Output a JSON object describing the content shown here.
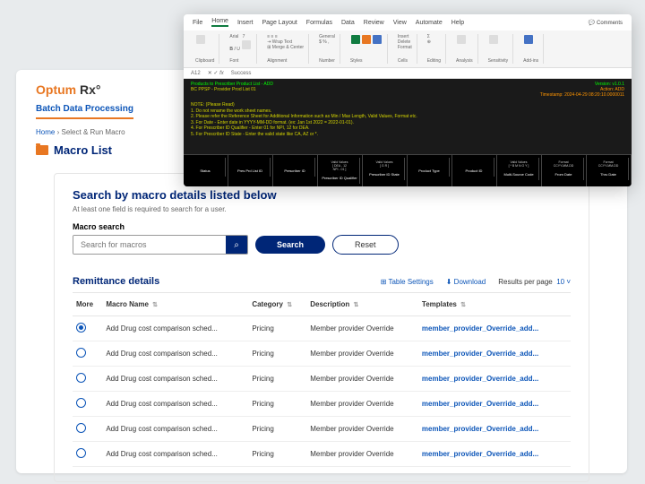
{
  "brand": {
    "optum": "Optum",
    "rx": " Rx"
  },
  "section": "Batch Data Processing",
  "crumb": {
    "home": "Home",
    "sep": "›",
    "cur": "Select & Run Macro"
  },
  "macroTitle": "Macro List",
  "search": {
    "h": "Search by macro details listed below",
    "sub": "At least one field is required to search for a user.",
    "lbl": "Macro search",
    "ph": "Search for macros",
    "btn": "Search",
    "reset": "Reset"
  },
  "rem": {
    "h": "Remittance details",
    "ts": "⊞ Table Settings",
    "dl": "⬇ Download",
    "rpp": "Results per page",
    "rppn": "10 ˅"
  },
  "cols": {
    "more": "More",
    "name": "Macro Name",
    "cat": "Category",
    "desc": "Description",
    "tmpl": "Templates",
    "sort": "⇅"
  },
  "rows": [
    {
      "sel": true,
      "name": "Add Drug cost comparison sched...",
      "cat": "Pricing",
      "desc": "Member provider Override",
      "tmpl": "member_provider_Override_add..."
    },
    {
      "sel": false,
      "name": "Add Drug cost comparison sched...",
      "cat": "Pricing",
      "desc": "Member provider Override",
      "tmpl": "member_provider_Override_add..."
    },
    {
      "sel": false,
      "name": "Add Drug cost comparison sched...",
      "cat": "Pricing",
      "desc": "Member provider Override",
      "tmpl": "member_provider_Override_add..."
    },
    {
      "sel": false,
      "name": "Add Drug cost comparison sched...",
      "cat": "Pricing",
      "desc": "Member provider Override",
      "tmpl": "member_provider_Override_add..."
    },
    {
      "sel": false,
      "name": "Add Drug cost comparison sched...",
      "cat": "Pricing",
      "desc": "Member provider Override",
      "tmpl": "member_provider_Override_add..."
    },
    {
      "sel": false,
      "name": "Add Drug cost comparison sched...",
      "cat": "Pricing",
      "desc": "Member provider Override",
      "tmpl": "member_provider_Override_add..."
    }
  ],
  "excel": {
    "menu": [
      "File",
      "Home",
      "Insert",
      "Page Layout",
      "Formulas",
      "Data",
      "Review",
      "View",
      "Automate",
      "Help"
    ],
    "comments": "💬 Comments",
    "cell": "A12",
    "fx": "Success",
    "title": "Products to Prescriber Product List - ADD",
    "sub": "BC PPSP - Provider Prod List 01",
    "ver": "Version: v1.0.1",
    "act": "Action: ADD",
    "ts": "Timestamp: 2024-04-29 08:20:10.0000011",
    "notes": [
      "NOTE: (Please Read)",
      "1. Do not rename the work sheet names.",
      "2. Please refer the Reference Sheet for Additional Information such as Min / Max Length, Valid Values, Format etc.",
      "3. For Date - Enter date in YYYY-MM-DD format. (ex: Jan 1st 2022 = 2022-01-01).",
      "4. For Prescriber ID Qualifier - Enter 01 for NPI, 12 for DEA.",
      "5. For Prescriber ID State - Enter the valid state like CA, AZ or *."
    ],
    "hdrs": [
      "Status",
      "Pres Prd List ID",
      "Prescriber ID",
      "Prescriber ID Qualifier",
      "Prescriber ID State",
      "Product Type",
      "Product ID",
      "Multi-Source Code",
      "From Date",
      "Thru Date"
    ],
    "valid": [
      "",
      "",
      "",
      "Valid Values<br>[ DEA - 12<br>NPI - 01 ]",
      "Valid Values<br>[ G R ]",
      "",
      "",
      "Valid Values<br>[ * B M N O Y ]",
      "Format<br>CCYY-MM-DD",
      "Format<br>CCYY-MM-DD"
    ]
  }
}
